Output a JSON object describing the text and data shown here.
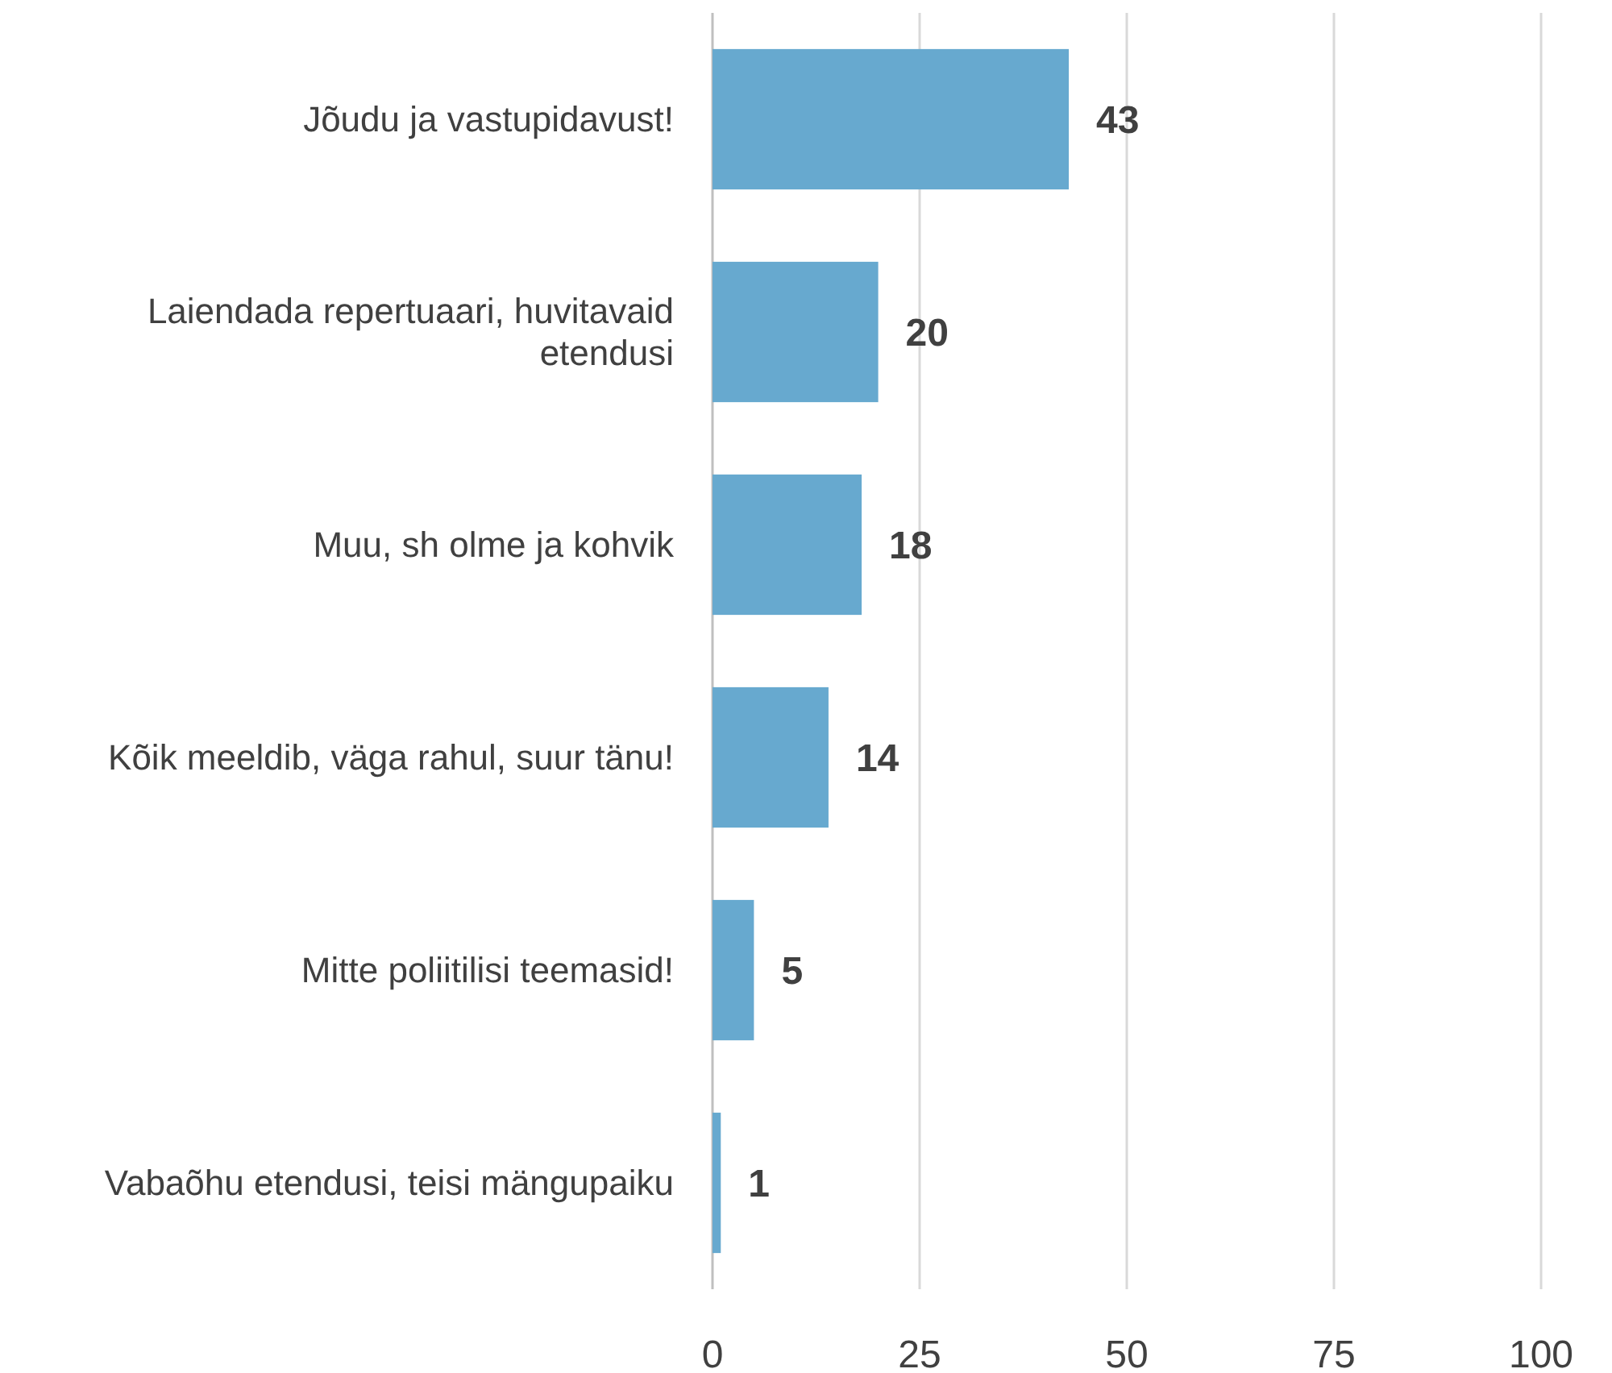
{
  "chart_data": {
    "type": "bar",
    "orientation": "horizontal",
    "categories": [
      "Jõudu ja vastupidavust!",
      "Laiendada repertuaari, huvitavaid etendusi",
      "Muu, sh olme ja kohvik",
      "Kõik meeldib, väga rahul, suur tänu!",
      "Mitte poliitilisi teemasid!",
      "Vabaõhu etendusi, teisi mängupaiku"
    ],
    "values": [
      43,
      20,
      18,
      14,
      5,
      1
    ],
    "color": "#67a9cf",
    "xlim": [
      0,
      100
    ],
    "xticks": [
      0,
      25,
      50,
      75,
      100
    ],
    "grid": "x",
    "data_labels": true
  }
}
